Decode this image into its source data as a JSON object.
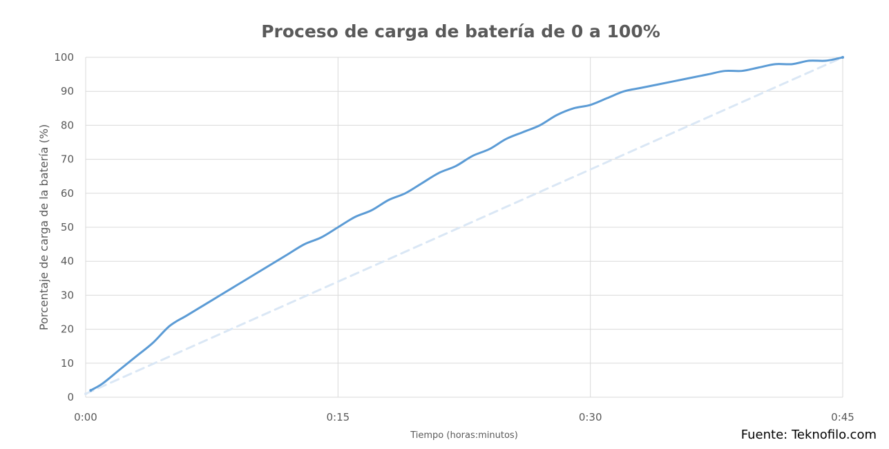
{
  "chart_data": {
    "type": "line",
    "title": "Proceso de carga de batería de 0 a 100%",
    "xlabel": "Tiempo (horas:minutos)",
    "ylabel": "Porcentaje de carga de la batería (%)",
    "x_tick_labels": [
      "0:00",
      "0:15",
      "0:30",
      "0:45"
    ],
    "x_ticks_minutes": [
      0,
      15,
      30,
      45
    ],
    "xlim_minutes": [
      0,
      45
    ],
    "y_ticks": [
      0,
      10,
      20,
      30,
      40,
      50,
      60,
      70,
      80,
      90,
      100
    ],
    "ylim": [
      0,
      100
    ],
    "grid": true,
    "series": [
      {
        "style": "solid",
        "color": "#5b9bd5",
        "x_minutes": [
          0.3,
          1,
          2,
          3,
          4,
          5,
          6,
          7,
          8,
          9,
          10,
          11,
          12,
          13,
          14,
          15,
          16,
          17,
          18,
          19,
          20,
          21,
          22,
          23,
          24,
          25,
          26,
          27,
          28,
          29,
          30,
          31,
          32,
          33,
          34,
          35,
          36,
          37,
          38,
          39,
          40,
          41,
          42,
          43,
          44,
          45
        ],
        "values": [
          2,
          4,
          8,
          12,
          16,
          21,
          24,
          27,
          30,
          33,
          36,
          39,
          42,
          45,
          47,
          50,
          53,
          55,
          58,
          60,
          63,
          66,
          68,
          71,
          73,
          76,
          78,
          80,
          83,
          85,
          86,
          88,
          90,
          91,
          92,
          93,
          94,
          95,
          96,
          96,
          97,
          98,
          98,
          99,
          99,
          100
        ]
      },
      {
        "style": "dashed",
        "color": "#dae7f5",
        "x_minutes": [
          0,
          45
        ],
        "values": [
          1,
          100
        ]
      }
    ]
  },
  "source": "Fuente: Teknofilo.com"
}
